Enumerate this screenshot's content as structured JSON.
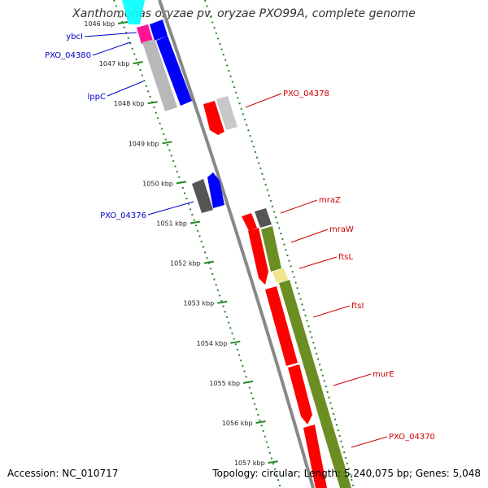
{
  "title": "Xanthomonas oryzae pv. oryzae PXO99A, complete genome",
  "footer": {
    "accession": "Accession: NC_010717",
    "summary": "Topology: circular; Length: 5,240,075 bp; Genes: 5,048"
  },
  "colors": {
    "forward": "#0000ff",
    "reverse": "#ff0000",
    "backbone": "#888888",
    "tick": "#228822",
    "cyan": "#00ffff",
    "magenta": "#ff1493",
    "grey": "#b0b0b0",
    "darkgrey": "#555555",
    "olive": "#6b8e23",
    "yellow": "#f0e68c"
  },
  "ticks": [
    "1046 kbp",
    "1047 kbp",
    "1048 kbp",
    "1049 kbp",
    "1050 kbp",
    "1051 kbp",
    "1052 kbp",
    "1053 kbp",
    "1054 kbp",
    "1055 kbp",
    "1056 kbp",
    "1057 kbp"
  ],
  "gene_labels_left": [
    "ybcI",
    "PXO_04380",
    "lppC",
    "PXO_04376"
  ],
  "gene_labels_right": [
    "PXO_04378",
    "mraZ",
    "mraW",
    "ftsL",
    "ftsI",
    "murE",
    "PXO_04370"
  ]
}
